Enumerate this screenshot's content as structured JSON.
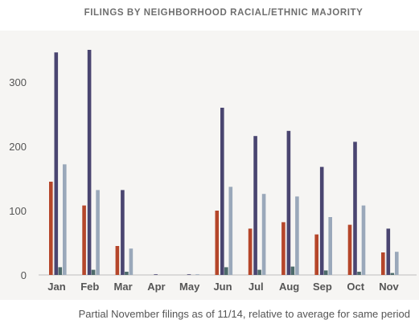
{
  "chart_data": {
    "type": "bar",
    "title": "FILINGS BY NEIGHBORHOOD RACIAL/ETHNIC MAJORITY",
    "footnote": "Partial November filings as of 11/14, relative to average for same period",
    "categories": [
      "Jan",
      "Feb",
      "Mar",
      "Apr",
      "May",
      "Jun",
      "Jul",
      "Aug",
      "Sep",
      "Oct",
      "Nov"
    ],
    "series": [
      {
        "color": "#b5462a",
        "values": [
          145,
          108,
          45,
          0,
          0,
          100,
          72,
          82,
          63,
          78,
          35
        ]
      },
      {
        "color": "#4a4570",
        "values": [
          346,
          350,
          132,
          1,
          1,
          260,
          216,
          224,
          168,
          207,
          72
        ]
      },
      {
        "color": "#4d6b6b",
        "values": [
          12,
          8,
          5,
          0,
          0,
          12,
          8,
          13,
          7,
          5,
          3
        ]
      },
      {
        "color": "#9aa8ba",
        "values": [
          172,
          132,
          41,
          0,
          1,
          137,
          126,
          122,
          90,
          108,
          36
        ]
      }
    ],
    "yticks": [
      0,
      100,
      200,
      300
    ],
    "ylim": [
      0,
      370
    ],
    "grid": false,
    "colors": {
      "background": "#f6f5f3",
      "title": "#6e6e6e",
      "tick": "#555555",
      "axis": "#bdbdbd"
    }
  }
}
